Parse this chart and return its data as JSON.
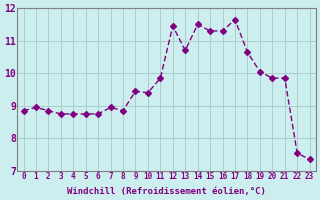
{
  "x": [
    0,
    1,
    2,
    3,
    4,
    5,
    6,
    7,
    8,
    9,
    10,
    11,
    12,
    13,
    14,
    15,
    16,
    17,
    18,
    19,
    20,
    21,
    22,
    23
  ],
  "y": [
    8.85,
    8.95,
    8.85,
    8.75,
    8.75,
    8.75,
    8.75,
    8.95,
    8.85,
    9.45,
    9.4,
    9.85,
    11.45,
    10.7,
    11.5,
    11.3,
    11.3,
    11.65,
    10.65,
    10.05,
    9.85,
    9.85,
    7.55,
    7.35
  ],
  "line_color": "#800080",
  "marker": "D",
  "marker_size": 3,
  "background_color": "#cceeee",
  "grid_color": "#aacccc",
  "xlabel": "Windchill (Refroidissement éolien,°C)",
  "xlabel_color": "#800080",
  "tick_color": "#800080",
  "ylim": [
    7,
    12
  ],
  "xlim": [
    -0.5,
    23.5
  ],
  "yticks": [
    7,
    8,
    9,
    10,
    11,
    12
  ],
  "xticks": [
    0,
    1,
    2,
    3,
    4,
    5,
    6,
    7,
    8,
    9,
    10,
    11,
    12,
    13,
    14,
    15,
    16,
    17,
    18,
    19,
    20,
    21,
    22,
    23
  ]
}
